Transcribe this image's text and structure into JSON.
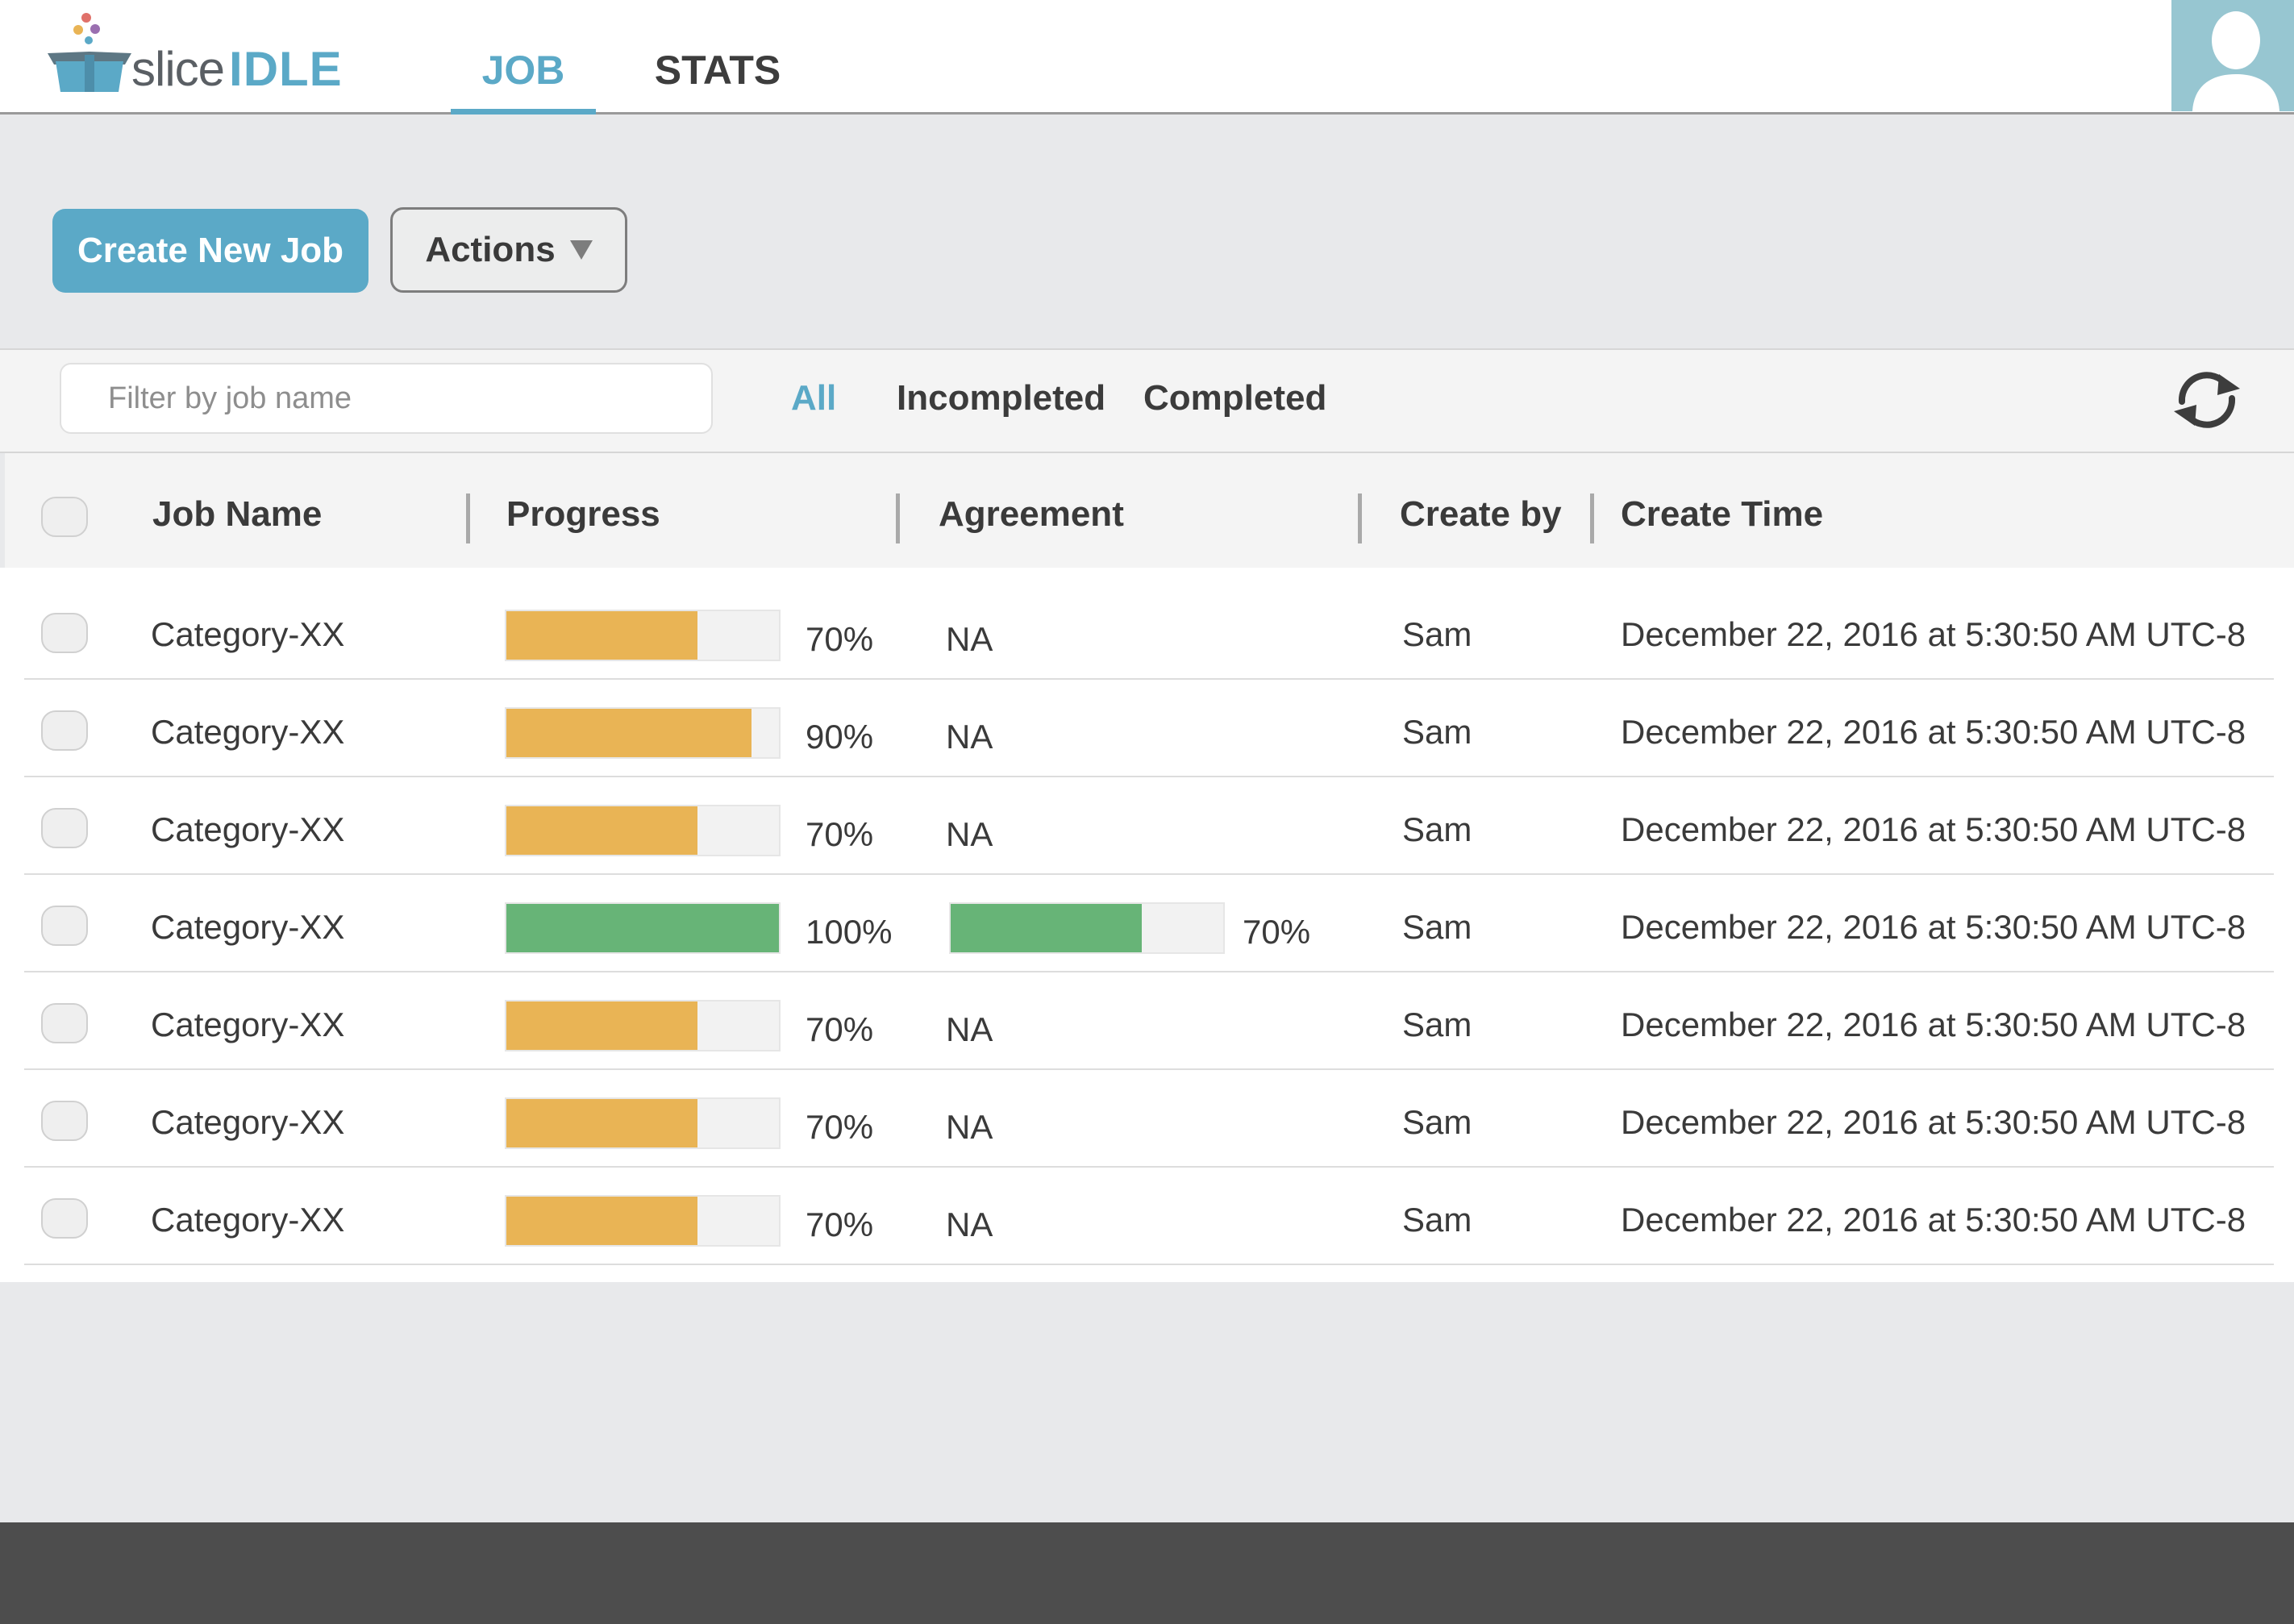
{
  "brand": {
    "name": "slice",
    "product": "IDLE"
  },
  "nav": {
    "tabs": [
      {
        "label": "JOB",
        "active": true
      },
      {
        "label": "STATS",
        "active": false
      }
    ]
  },
  "toolbar": {
    "create_label": "Create New Job",
    "actions_label": "Actions"
  },
  "filter": {
    "placeholder": "Filter by job name",
    "value": "",
    "tabs": [
      {
        "label": "All",
        "active": true
      },
      {
        "label": "Incompleted",
        "active": false
      },
      {
        "label": "Completed",
        "active": false
      }
    ]
  },
  "colors": {
    "accent": "#5ba9c7",
    "progress_in_progress": "#e9b455",
    "progress_complete": "#67b477",
    "footer": "#4d4d4d"
  },
  "table": {
    "columns": [
      "Job Name",
      "Progress",
      "Agreement",
      "Create by",
      "Create Time"
    ],
    "rows": [
      {
        "job_name": "Category-XX",
        "progress": 70,
        "progress_label": "70%",
        "agreement": null,
        "agreement_text": "NA",
        "create_by": "Sam",
        "create_time": "December 22, 2016 at 5:30:50 AM UTC-8"
      },
      {
        "job_name": "Category-XX",
        "progress": 90,
        "progress_label": "90%",
        "agreement": null,
        "agreement_text": "NA",
        "create_by": "Sam",
        "create_time": "December 22, 2016 at 5:30:50 AM UTC-8"
      },
      {
        "job_name": "Category-XX",
        "progress": 70,
        "progress_label": "70%",
        "agreement": null,
        "agreement_text": "NA",
        "create_by": "Sam",
        "create_time": "December 22, 2016 at 5:30:50 AM UTC-8"
      },
      {
        "job_name": "Category-XX",
        "progress": 100,
        "progress_label": "100%",
        "agreement": 70,
        "agreement_text": "70%",
        "create_by": "Sam",
        "create_time": "December 22, 2016 at 5:30:50 AM UTC-8"
      },
      {
        "job_name": "Category-XX",
        "progress": 70,
        "progress_label": "70%",
        "agreement": null,
        "agreement_text": "NA",
        "create_by": "Sam",
        "create_time": "December 22, 2016 at 5:30:50 AM UTC-8"
      },
      {
        "job_name": "Category-XX",
        "progress": 70,
        "progress_label": "70%",
        "agreement": null,
        "agreement_text": "NA",
        "create_by": "Sam",
        "create_time": "December 22, 2016 at 5:30:50 AM UTC-8"
      },
      {
        "job_name": "Category-XX",
        "progress": 70,
        "progress_label": "70%",
        "agreement": null,
        "agreement_text": "NA",
        "create_by": "Sam",
        "create_time": "December 22, 2016 at 5:30:50 AM UTC-8"
      }
    ]
  },
  "icons": {
    "logo": "gift-box-logo-icon",
    "avatar": "user-avatar-icon",
    "refresh": "refresh-icon",
    "actions_caret": "caret-down-icon"
  }
}
